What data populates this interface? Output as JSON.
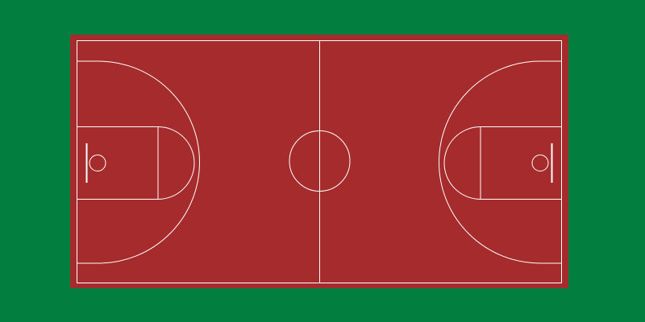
{
  "colors": {
    "surround": "#027F3E",
    "court": "#A52B2C",
    "lines": "#FFFFFF"
  }
}
